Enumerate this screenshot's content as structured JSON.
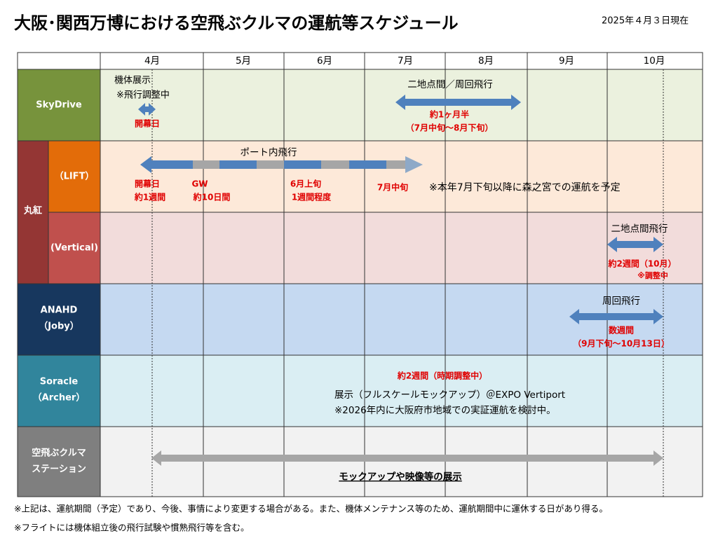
{
  "header": {
    "title": "大阪･関西万博における空飛ぶクルマの運航等スケジュール",
    "date": "2025年４月３日現在"
  },
  "months": [
    "4月",
    "5月",
    "6月",
    "7月",
    "8月",
    "9月",
    "10月"
  ],
  "group_label": "丸紅",
  "rows": [
    {
      "label": [
        "SkyDrive"
      ],
      "texts": [
        "機体展示",
        "※飛行調整中",
        "開幕日",
        "二地点間／周回飛行",
        "約1ヶ月半",
        "（7月中旬～8月下旬）"
      ]
    },
    {
      "label": [
        "（LIFT）"
      ],
      "texts": [
        "ポート内飛行",
        "開幕日",
        "約1週間",
        "GW",
        "約10日間",
        "6月上旬",
        "1週間程度",
        "7月中旬",
        "※本年7月下旬以降に森之宮での運航を予定"
      ]
    },
    {
      "label": [
        "(Vertical)"
      ],
      "texts": [
        "二地点間飛行",
        "約2週間（10月）",
        "※調整中"
      ]
    },
    {
      "label": [
        "ANAHD",
        "（Joby）"
      ],
      "texts": [
        "周回飛行",
        "数週間",
        "（9月下旬～10月13日）"
      ]
    },
    {
      "label": [
        "Soracle",
        "（Archer）"
      ],
      "texts": [
        "約2週間（時期調整中）",
        "展示（フルスケールモックアップ）＠EXPO Vertiport",
        "※2026年内に大阪府市地域での実証運航を検討中。"
      ]
    },
    {
      "label": [
        "空飛ぶクルマ",
        "ステーション"
      ],
      "texts": [
        "モックアップや映像等の展示"
      ]
    }
  ],
  "footnotes": [
    "※上記は、運航期間（予定）であり、今後、事情により変更する場合がある。また、機体メンテナンス等のため、運航期間中に運休する日があり得る。",
    "※フライトには機体組立後の飛行試験や慣熟飛行等を含む。"
  ]
}
